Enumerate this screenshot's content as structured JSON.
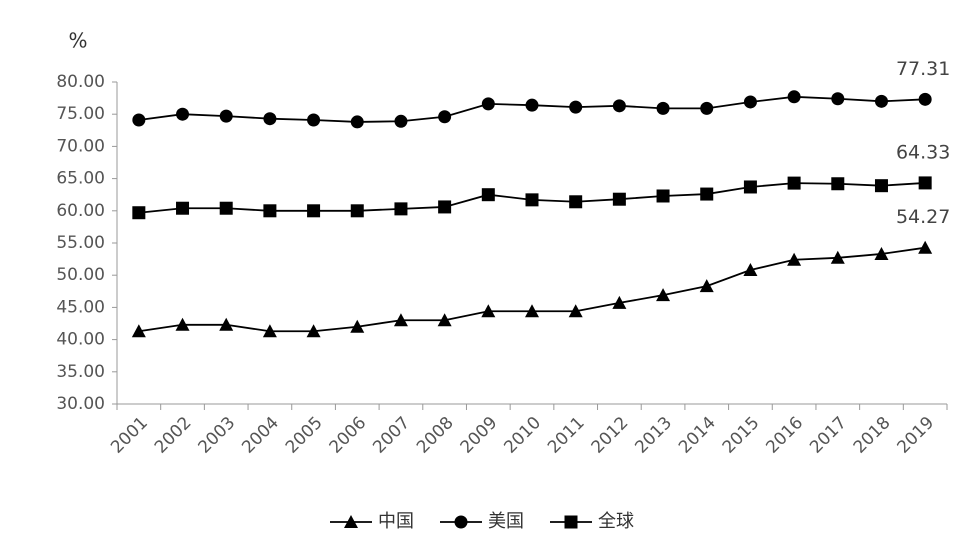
{
  "chart_data": {
    "type": "line",
    "y_label": "%",
    "categories": [
      "2001",
      "2002",
      "2003",
      "2004",
      "2005",
      "2006",
      "2007",
      "2008",
      "2009",
      "2010",
      "2011",
      "2012",
      "2013",
      "2014",
      "2015",
      "2016",
      "2017",
      "2018",
      "2019"
    ],
    "series": [
      {
        "name": "中国",
        "color": "#000000",
        "marker": "triangle",
        "values": [
          41.3,
          42.3,
          42.3,
          41.3,
          41.3,
          42.0,
          43.0,
          43.0,
          44.4,
          44.4,
          44.4,
          45.7,
          46.9,
          48.3,
          50.8,
          52.4,
          52.7,
          53.3,
          54.27
        ]
      },
      {
        "name": "美国",
        "color": "#000000",
        "marker": "circle",
        "values": [
          74.1,
          75.0,
          74.7,
          74.3,
          74.1,
          73.8,
          73.9,
          74.6,
          76.6,
          76.4,
          76.1,
          76.3,
          75.9,
          75.9,
          76.9,
          77.7,
          77.4,
          77.0,
          77.31
        ]
      },
      {
        "name": "全球",
        "color": "#000000",
        "marker": "square",
        "values": [
          59.7,
          60.4,
          60.4,
          60.0,
          60.0,
          60.0,
          60.3,
          60.6,
          62.5,
          61.7,
          61.4,
          61.8,
          62.3,
          62.6,
          63.7,
          64.3,
          64.2,
          63.9,
          64.33
        ]
      }
    ],
    "ylim": [
      30,
      80
    ],
    "yticks": [
      {
        "value": 30,
        "label": "30.00"
      },
      {
        "value": 35,
        "label": "35.00"
      },
      {
        "value": 40,
        "label": "40.00"
      },
      {
        "value": 45,
        "label": "45.00"
      },
      {
        "value": 50,
        "label": "50.00"
      },
      {
        "value": 55,
        "label": "55.00"
      },
      {
        "value": 60,
        "label": "60.00"
      },
      {
        "value": 65,
        "label": "65.00"
      },
      {
        "value": 70,
        "label": "70.00"
      },
      {
        "value": 75,
        "label": "75.00"
      },
      {
        "value": 80,
        "label": "80.00"
      }
    ],
    "grid": false,
    "legend": "bottom"
  }
}
